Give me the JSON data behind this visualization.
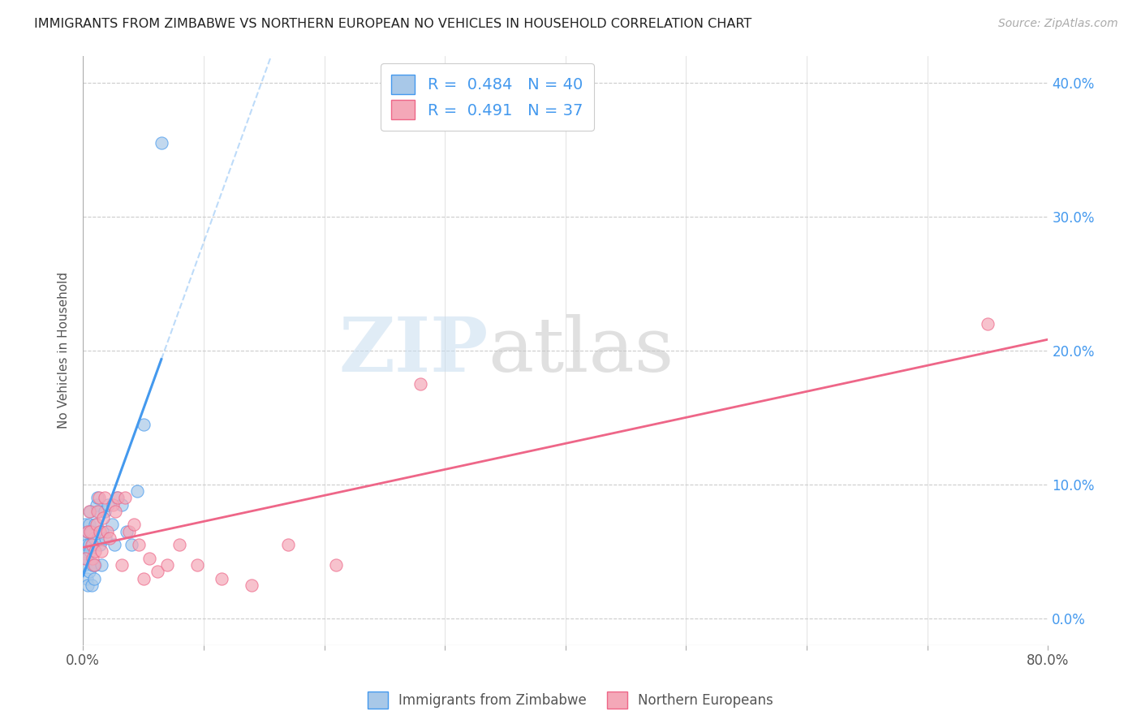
{
  "title": "IMMIGRANTS FROM ZIMBABWE VS NORTHERN EUROPEAN NO VEHICLES IN HOUSEHOLD CORRELATION CHART",
  "source": "Source: ZipAtlas.com",
  "ylabel": "No Vehicles in Household",
  "xlim": [
    0.0,
    0.8
  ],
  "ylim": [
    -0.02,
    0.42
  ],
  "ylim_data": [
    0.0,
    0.4
  ],
  "xticks": [
    0.0,
    0.1,
    0.2,
    0.3,
    0.4,
    0.5,
    0.6,
    0.7,
    0.8
  ],
  "yticks": [
    0.0,
    0.1,
    0.2,
    0.3,
    0.4
  ],
  "xtick_labels_only_ends": true,
  "legend1_R": "0.484",
  "legend1_N": "40",
  "legend2_R": "0.491",
  "legend2_N": "37",
  "legend_label1": "Immigrants from Zimbabwe",
  "legend_label2": "Northern Europeans",
  "color_zimbabwe": "#a8c8e8",
  "color_northern": "#f4a8b8",
  "color_trendline_zimbabwe": "#4499ee",
  "color_trendline_northern": "#ee6688",
  "color_legend_text": "#4499ee",
  "watermark_zip": "ZIP",
  "watermark_atlas": "atlas",
  "background_color": "#ffffff",
  "zimbabwe_x": [
    0.001,
    0.001,
    0.002,
    0.002,
    0.003,
    0.003,
    0.003,
    0.004,
    0.004,
    0.005,
    0.005,
    0.005,
    0.006,
    0.006,
    0.007,
    0.007,
    0.008,
    0.008,
    0.009,
    0.009,
    0.01,
    0.01,
    0.011,
    0.012,
    0.013,
    0.014,
    0.015,
    0.016,
    0.018,
    0.019,
    0.021,
    0.024,
    0.026,
    0.028,
    0.032,
    0.036,
    0.04,
    0.045,
    0.05,
    0.065
  ],
  "zimbabwe_y": [
    0.06,
    0.04,
    0.07,
    0.05,
    0.055,
    0.045,
    0.03,
    0.065,
    0.025,
    0.07,
    0.055,
    0.035,
    0.08,
    0.05,
    0.065,
    0.025,
    0.055,
    0.04,
    0.06,
    0.03,
    0.07,
    0.04,
    0.085,
    0.09,
    0.08,
    0.055,
    0.04,
    0.065,
    0.08,
    0.06,
    0.085,
    0.07,
    0.055,
    0.09,
    0.085,
    0.065,
    0.055,
    0.095,
    0.145,
    0.355
  ],
  "northern_x": [
    0.002,
    0.004,
    0.005,
    0.006,
    0.007,
    0.008,
    0.009,
    0.01,
    0.011,
    0.012,
    0.013,
    0.014,
    0.015,
    0.017,
    0.018,
    0.02,
    0.022,
    0.025,
    0.027,
    0.029,
    0.032,
    0.035,
    0.038,
    0.042,
    0.046,
    0.05,
    0.055,
    0.062,
    0.07,
    0.08,
    0.095,
    0.115,
    0.14,
    0.17,
    0.21,
    0.28,
    0.75
  ],
  "northern_y": [
    0.045,
    0.065,
    0.08,
    0.065,
    0.055,
    0.045,
    0.04,
    0.05,
    0.07,
    0.08,
    0.09,
    0.065,
    0.05,
    0.075,
    0.09,
    0.065,
    0.06,
    0.085,
    0.08,
    0.09,
    0.04,
    0.09,
    0.065,
    0.07,
    0.055,
    0.03,
    0.045,
    0.035,
    0.04,
    0.055,
    0.04,
    0.03,
    0.025,
    0.055,
    0.04,
    0.175,
    0.22
  ]
}
